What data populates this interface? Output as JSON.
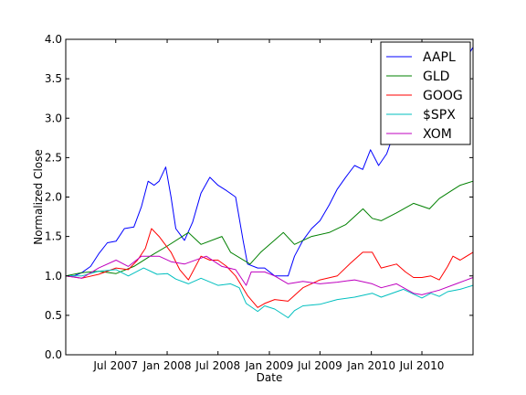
{
  "chart_data": {
    "type": "line",
    "title": "",
    "xlabel": "Date",
    "ylabel": "Normalized Close",
    "ylim": [
      0.0,
      4.0
    ],
    "xlim": [
      "2007-01-03",
      "2010-12-31"
    ],
    "yticks": [
      0.0,
      0.5,
      1.0,
      1.5,
      2.0,
      2.5,
      3.0,
      3.5,
      4.0
    ],
    "ytick_labels": [
      "0.0",
      "0.5",
      "1.0",
      "1.5",
      "2.0",
      "2.5",
      "3.0",
      "3.5",
      "4.0"
    ],
    "xticks": [
      "2007-07-01",
      "2008-01-01",
      "2008-07-01",
      "2009-01-01",
      "2009-07-01",
      "2010-01-01",
      "2010-07-01"
    ],
    "xtick_labels": [
      "Jul 2007",
      "Jan 2008",
      "Jul 2008",
      "Jan 2009",
      "Jul 2009",
      "Jan 2010",
      "Jul 2010"
    ],
    "grid": false,
    "legend_position": "top-right",
    "series": [
      {
        "name": "AAPL",
        "color": "#0000ff",
        "points": [
          [
            "2007-01-03",
            1.0
          ],
          [
            "2007-02-01",
            1.0
          ],
          [
            "2007-03-01",
            1.04
          ],
          [
            "2007-04-02",
            1.12
          ],
          [
            "2007-05-01",
            1.28
          ],
          [
            "2007-06-01",
            1.42
          ],
          [
            "2007-07-02",
            1.44
          ],
          [
            "2007-08-01",
            1.6
          ],
          [
            "2007-09-04",
            1.62
          ],
          [
            "2007-10-01",
            1.88
          ],
          [
            "2007-10-25",
            2.2
          ],
          [
            "2007-11-15",
            2.15
          ],
          [
            "2007-12-03",
            2.2
          ],
          [
            "2007-12-27",
            2.38
          ],
          [
            "2008-01-15",
            2.0
          ],
          [
            "2008-02-01",
            1.6
          ],
          [
            "2008-03-03",
            1.45
          ],
          [
            "2008-04-01",
            1.68
          ],
          [
            "2008-05-01",
            2.05
          ],
          [
            "2008-06-02",
            2.25
          ],
          [
            "2008-07-01",
            2.15
          ],
          [
            "2008-08-01",
            2.08
          ],
          [
            "2008-09-02",
            2.0
          ],
          [
            "2008-09-29",
            1.45
          ],
          [
            "2008-10-15",
            1.15
          ],
          [
            "2008-11-20",
            1.1
          ],
          [
            "2008-12-15",
            1.1
          ],
          [
            "2009-01-20",
            1.0
          ],
          [
            "2009-03-09",
            1.0
          ],
          [
            "2009-04-01",
            1.25
          ],
          [
            "2009-05-01",
            1.45
          ],
          [
            "2009-06-01",
            1.6
          ],
          [
            "2009-07-01",
            1.7
          ],
          [
            "2009-08-03",
            1.9
          ],
          [
            "2009-09-01",
            2.1
          ],
          [
            "2009-10-01",
            2.25
          ],
          [
            "2009-11-02",
            2.4
          ],
          [
            "2009-12-01",
            2.35
          ],
          [
            "2009-12-29",
            2.6
          ],
          [
            "2010-01-27",
            2.4
          ],
          [
            "2010-02-25",
            2.55
          ],
          [
            "2010-04-01",
            2.9
          ],
          [
            "2010-05-03",
            3.05
          ],
          [
            "2010-06-01",
            3.0
          ],
          [
            "2010-07-01",
            3.0
          ],
          [
            "2010-08-02",
            3.05
          ],
          [
            "2010-09-01",
            3.05
          ],
          [
            "2010-10-01",
            3.5
          ],
          [
            "2010-11-01",
            3.7
          ],
          [
            "2010-12-01",
            3.72
          ],
          [
            "2010-12-31",
            3.9
          ]
        ]
      },
      {
        "name": "GLD",
        "color": "#008000",
        "points": [
          [
            "2007-01-03",
            1.0
          ],
          [
            "2007-03-01",
            1.04
          ],
          [
            "2007-05-01",
            1.06
          ],
          [
            "2007-07-02",
            1.03
          ],
          [
            "2007-09-04",
            1.12
          ],
          [
            "2007-11-01",
            1.25
          ],
          [
            "2008-01-02",
            1.38
          ],
          [
            "2008-03-17",
            1.55
          ],
          [
            "2008-05-01",
            1.4
          ],
          [
            "2008-07-15",
            1.5
          ],
          [
            "2008-08-15",
            1.3
          ],
          [
            "2008-10-24",
            1.15
          ],
          [
            "2008-12-01",
            1.3
          ],
          [
            "2009-02-20",
            1.55
          ],
          [
            "2009-04-01",
            1.4
          ],
          [
            "2009-06-01",
            1.5
          ],
          [
            "2009-08-03",
            1.55
          ],
          [
            "2009-10-01",
            1.65
          ],
          [
            "2009-12-02",
            1.85
          ],
          [
            "2010-01-04",
            1.73
          ],
          [
            "2010-02-05",
            1.7
          ],
          [
            "2010-04-01",
            1.8
          ],
          [
            "2010-06-01",
            1.92
          ],
          [
            "2010-07-28",
            1.85
          ],
          [
            "2010-09-01",
            1.98
          ],
          [
            "2010-10-15",
            2.08
          ],
          [
            "2010-11-15",
            2.15
          ],
          [
            "2010-12-31",
            2.2
          ]
        ]
      },
      {
        "name": "GOOG",
        "color": "#ff0000",
        "points": [
          [
            "2007-01-03",
            1.0
          ],
          [
            "2007-03-01",
            0.97
          ],
          [
            "2007-05-01",
            1.02
          ],
          [
            "2007-07-02",
            1.1
          ],
          [
            "2007-08-15",
            1.08
          ],
          [
            "2007-09-17",
            1.2
          ],
          [
            "2007-10-15",
            1.35
          ],
          [
            "2007-11-06",
            1.6
          ],
          [
            "2007-12-03",
            1.5
          ],
          [
            "2008-01-15",
            1.3
          ],
          [
            "2008-02-15",
            1.08
          ],
          [
            "2008-03-17",
            0.95
          ],
          [
            "2008-05-01",
            1.25
          ],
          [
            "2008-06-02",
            1.2
          ],
          [
            "2008-07-01",
            1.2
          ],
          [
            "2008-08-01",
            1.12
          ],
          [
            "2008-09-02",
            1.0
          ],
          [
            "2008-10-15",
            0.75
          ],
          [
            "2008-11-20",
            0.6
          ],
          [
            "2008-12-15",
            0.65
          ],
          [
            "2009-01-20",
            0.7
          ],
          [
            "2009-03-09",
            0.68
          ],
          [
            "2009-05-01",
            0.85
          ],
          [
            "2009-07-01",
            0.95
          ],
          [
            "2009-09-01",
            1.0
          ],
          [
            "2009-10-15",
            1.15
          ],
          [
            "2009-12-01",
            1.3
          ],
          [
            "2010-01-04",
            1.3
          ],
          [
            "2010-02-05",
            1.1
          ],
          [
            "2010-04-01",
            1.15
          ],
          [
            "2010-05-03",
            1.05
          ],
          [
            "2010-06-01",
            0.98
          ],
          [
            "2010-07-01",
            0.98
          ],
          [
            "2010-08-02",
            1.0
          ],
          [
            "2010-09-01",
            0.95
          ],
          [
            "2010-10-01",
            1.12
          ],
          [
            "2010-10-20",
            1.25
          ],
          [
            "2010-11-15",
            1.2
          ],
          [
            "2010-12-31",
            1.3
          ]
        ]
      },
      {
        "name": "$SPX",
        "color": "#00bfbf",
        "points": [
          [
            "2007-01-03",
            1.0
          ],
          [
            "2007-03-01",
            1.0
          ],
          [
            "2007-05-01",
            1.06
          ],
          [
            "2007-07-02",
            1.08
          ],
          [
            "2007-08-15",
            1.0
          ],
          [
            "2007-10-09",
            1.1
          ],
          [
            "2007-11-26",
            1.02
          ],
          [
            "2008-01-02",
            1.03
          ],
          [
            "2008-02-01",
            0.96
          ],
          [
            "2008-03-17",
            0.9
          ],
          [
            "2008-05-01",
            0.97
          ],
          [
            "2008-07-01",
            0.88
          ],
          [
            "2008-08-15",
            0.9
          ],
          [
            "2008-09-15",
            0.85
          ],
          [
            "2008-10-10",
            0.65
          ],
          [
            "2008-11-20",
            0.55
          ],
          [
            "2008-12-15",
            0.62
          ],
          [
            "2009-01-20",
            0.58
          ],
          [
            "2009-03-09",
            0.47
          ],
          [
            "2009-04-01",
            0.56
          ],
          [
            "2009-05-01",
            0.62
          ],
          [
            "2009-07-01",
            0.64
          ],
          [
            "2009-09-01",
            0.7
          ],
          [
            "2009-11-02",
            0.73
          ],
          [
            "2010-01-04",
            0.78
          ],
          [
            "2010-02-05",
            0.73
          ],
          [
            "2010-04-26",
            0.83
          ],
          [
            "2010-07-01",
            0.72
          ],
          [
            "2010-08-02",
            0.78
          ],
          [
            "2010-09-01",
            0.74
          ],
          [
            "2010-10-01",
            0.8
          ],
          [
            "2010-11-15",
            0.83
          ],
          [
            "2010-12-31",
            0.88
          ]
        ]
      },
      {
        "name": "XOM",
        "color": "#bf00bf",
        "points": [
          [
            "2007-01-03",
            1.0
          ],
          [
            "2007-03-01",
            0.97
          ],
          [
            "2007-05-01",
            1.1
          ],
          [
            "2007-07-02",
            1.2
          ],
          [
            "2007-08-15",
            1.12
          ],
          [
            "2007-10-01",
            1.25
          ],
          [
            "2007-12-03",
            1.25
          ],
          [
            "2008-01-15",
            1.18
          ],
          [
            "2008-03-03",
            1.15
          ],
          [
            "2008-05-20",
            1.25
          ],
          [
            "2008-07-15",
            1.12
          ],
          [
            "2008-09-02",
            1.08
          ],
          [
            "2008-10-10",
            0.88
          ],
          [
            "2008-10-28",
            1.05
          ],
          [
            "2008-12-15",
            1.05
          ],
          [
            "2009-01-20",
            1.0
          ],
          [
            "2009-03-09",
            0.9
          ],
          [
            "2009-05-01",
            0.93
          ],
          [
            "2009-07-01",
            0.9
          ],
          [
            "2009-09-01",
            0.92
          ],
          [
            "2009-11-02",
            0.95
          ],
          [
            "2010-01-04",
            0.9
          ],
          [
            "2010-02-05",
            0.85
          ],
          [
            "2010-04-01",
            0.9
          ],
          [
            "2010-06-01",
            0.78
          ],
          [
            "2010-07-01",
            0.76
          ],
          [
            "2010-09-01",
            0.82
          ],
          [
            "2010-11-01",
            0.9
          ],
          [
            "2010-12-31",
            0.98
          ]
        ]
      }
    ]
  }
}
